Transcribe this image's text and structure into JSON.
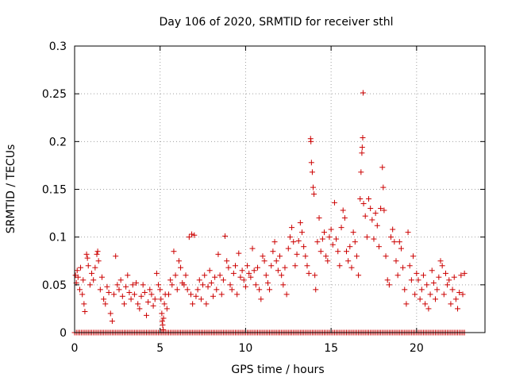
{
  "chart_data": {
    "type": "scatter",
    "title": "Day 106 of 2020, SRMTID for receiver sthl",
    "xlabel": "GPS time / hours",
    "ylabel": "SRMTID / TECUs",
    "xlim": [
      0,
      24
    ],
    "ylim": [
      0,
      0.3
    ],
    "xticks": [
      0,
      5,
      10,
      15,
      20
    ],
    "xtick_labels": [
      "0",
      "5",
      "10",
      "15",
      "20"
    ],
    "yticks": [
      0,
      0.05,
      0.1,
      0.15,
      0.2,
      0.25,
      0.3
    ],
    "ytick_labels": [
      "0",
      "0.05",
      "0.1",
      "0.15",
      "0.2",
      "0.25",
      "0.3"
    ],
    "grid": true,
    "marker": "+",
    "color": "#cc0000",
    "series": [
      {
        "name": "SRMTID",
        "points": [
          [
            0.05,
            0.06
          ],
          [
            0.1,
            0.052
          ],
          [
            0.15,
            0.065
          ],
          [
            0.2,
            0.058
          ],
          [
            0.3,
            0.045
          ],
          [
            0.35,
            0.068
          ],
          [
            0.45,
            0.04
          ],
          [
            0.5,
            0.055
          ],
          [
            0.55,
            0.03
          ],
          [
            0.6,
            0.022
          ],
          [
            0.7,
            0.082
          ],
          [
            0.75,
            0.078
          ],
          [
            0.8,
            0.07
          ],
          [
            0.9,
            0.05
          ],
          [
            1.0,
            0.062
          ],
          [
            1.1,
            0.055
          ],
          [
            1.2,
            0.068
          ],
          [
            1.3,
            0.082
          ],
          [
            1.35,
            0.085
          ],
          [
            1.4,
            0.075
          ],
          [
            1.5,
            0.045
          ],
          [
            1.6,
            0.058
          ],
          [
            1.7,
            0.035
          ],
          [
            1.8,
            0.03
          ],
          [
            1.9,
            0.048
          ],
          [
            2.0,
            0.042
          ],
          [
            2.1,
            0.02
          ],
          [
            2.2,
            0.012
          ],
          [
            2.3,
            0.04
          ],
          [
            2.4,
            0.08
          ],
          [
            2.5,
            0.05
          ],
          [
            2.6,
            0.045
          ],
          [
            2.7,
            0.055
          ],
          [
            2.8,
            0.038
          ],
          [
            2.9,
            0.03
          ],
          [
            3.0,
            0.048
          ],
          [
            3.1,
            0.06
          ],
          [
            3.2,
            0.042
          ],
          [
            3.3,
            0.035
          ],
          [
            3.4,
            0.05
          ],
          [
            3.5,
            0.04
          ],
          [
            3.6,
            0.052
          ],
          [
            3.7,
            0.03
          ],
          [
            3.8,
            0.025
          ],
          [
            3.9,
            0.038
          ],
          [
            4.0,
            0.05
          ],
          [
            4.1,
            0.042
          ],
          [
            4.2,
            0.018
          ],
          [
            4.3,
            0.032
          ],
          [
            4.4,
            0.045
          ],
          [
            4.5,
            0.04
          ],
          [
            4.6,
            0.028
          ],
          [
            4.7,
            0.035
          ],
          [
            4.8,
            0.062
          ],
          [
            4.9,
            0.05
          ],
          [
            5.0,
            0.045
          ],
          [
            5.05,
            0.035
          ],
          [
            5.1,
            0.02
          ],
          [
            5.12,
            0.012
          ],
          [
            5.15,
            0.008
          ],
          [
            5.18,
            0.003
          ],
          [
            5.2,
            0.015
          ],
          [
            5.25,
            0.03
          ],
          [
            5.3,
            0.04
          ],
          [
            5.4,
            0.025
          ],
          [
            5.5,
            0.04
          ],
          [
            5.6,
            0.055
          ],
          [
            5.7,
            0.05
          ],
          [
            5.8,
            0.085
          ],
          [
            5.9,
            0.06
          ],
          [
            6.0,
            0.045
          ],
          [
            6.1,
            0.075
          ],
          [
            6.2,
            0.068
          ],
          [
            6.3,
            0.052
          ],
          [
            6.4,
            0.05
          ],
          [
            6.5,
            0.06
          ],
          [
            6.6,
            0.045
          ],
          [
            6.7,
            0.1
          ],
          [
            6.8,
            0.04
          ],
          [
            6.85,
            0.103
          ],
          [
            6.9,
            0.03
          ],
          [
            7.0,
            0.102
          ],
          [
            7.1,
            0.038
          ],
          [
            7.2,
            0.045
          ],
          [
            7.3,
            0.055
          ],
          [
            7.4,
            0.035
          ],
          [
            7.5,
            0.05
          ],
          [
            7.6,
            0.06
          ],
          [
            7.7,
            0.03
          ],
          [
            7.8,
            0.048
          ],
          [
            7.9,
            0.065
          ],
          [
            8.0,
            0.052
          ],
          [
            8.1,
            0.038
          ],
          [
            8.2,
            0.058
          ],
          [
            8.3,
            0.045
          ],
          [
            8.4,
            0.082
          ],
          [
            8.5,
            0.06
          ],
          [
            8.6,
            0.04
          ],
          [
            8.7,
            0.055
          ],
          [
            8.8,
            0.101
          ],
          [
            8.9,
            0.075
          ],
          [
            9.0,
            0.068
          ],
          [
            9.1,
            0.05
          ],
          [
            9.2,
            0.045
          ],
          [
            9.3,
            0.062
          ],
          [
            9.4,
            0.07
          ],
          [
            9.5,
            0.04
          ],
          [
            9.6,
            0.083
          ],
          [
            9.7,
            0.058
          ],
          [
            9.8,
            0.065
          ],
          [
            9.9,
            0.055
          ],
          [
            10.0,
            0.048
          ],
          [
            10.1,
            0.07
          ],
          [
            10.2,
            0.062
          ],
          [
            10.3,
            0.058
          ],
          [
            10.4,
            0.088
          ],
          [
            10.5,
            0.065
          ],
          [
            10.6,
            0.05
          ],
          [
            10.7,
            0.068
          ],
          [
            10.8,
            0.045
          ],
          [
            10.9,
            0.035
          ],
          [
            11.0,
            0.08
          ],
          [
            11.1,
            0.075
          ],
          [
            11.2,
            0.06
          ],
          [
            11.3,
            0.052
          ],
          [
            11.4,
            0.045
          ],
          [
            11.5,
            0.07
          ],
          [
            11.6,
            0.085
          ],
          [
            11.7,
            0.095
          ],
          [
            11.8,
            0.075
          ],
          [
            11.9,
            0.065
          ],
          [
            12.0,
            0.08
          ],
          [
            12.1,
            0.06
          ],
          [
            12.2,
            0.05
          ],
          [
            12.3,
            0.068
          ],
          [
            12.4,
            0.04
          ],
          [
            12.5,
            0.088
          ],
          [
            12.6,
            0.1
          ],
          [
            12.7,
            0.11
          ],
          [
            12.8,
            0.095
          ],
          [
            12.9,
            0.07
          ],
          [
            13.0,
            0.082
          ],
          [
            13.1,
            0.096
          ],
          [
            13.2,
            0.115
          ],
          [
            13.3,
            0.105
          ],
          [
            13.4,
            0.09
          ],
          [
            13.5,
            0.08
          ],
          [
            13.6,
            0.07
          ],
          [
            13.7,
            0.062
          ],
          [
            13.8,
            0.203
          ],
          [
            13.82,
            0.2
          ],
          [
            13.85,
            0.178
          ],
          [
            13.9,
            0.168
          ],
          [
            13.95,
            0.152
          ],
          [
            14.0,
            0.145
          ],
          [
            14.05,
            0.06
          ],
          [
            14.1,
            0.045
          ],
          [
            14.2,
            0.095
          ],
          [
            14.3,
            0.12
          ],
          [
            14.4,
            0.085
          ],
          [
            14.5,
            0.098
          ],
          [
            14.6,
            0.105
          ],
          [
            14.7,
            0.08
          ],
          [
            14.8,
            0.075
          ],
          [
            14.9,
            0.1
          ],
          [
            15.0,
            0.108
          ],
          [
            15.1,
            0.092
          ],
          [
            15.2,
            0.136
          ],
          [
            15.3,
            0.098
          ],
          [
            15.4,
            0.085
          ],
          [
            15.5,
            0.07
          ],
          [
            15.6,
            0.11
          ],
          [
            15.7,
            0.128
          ],
          [
            15.8,
            0.12
          ],
          [
            15.9,
            0.085
          ],
          [
            16.0,
            0.075
          ],
          [
            16.1,
            0.09
          ],
          [
            16.2,
            0.068
          ],
          [
            16.3,
            0.105
          ],
          [
            16.4,
            0.095
          ],
          [
            16.5,
            0.08
          ],
          [
            16.6,
            0.06
          ],
          [
            16.7,
            0.14
          ],
          [
            16.75,
            0.168
          ],
          [
            16.8,
            0.188
          ],
          [
            16.82,
            0.194
          ],
          [
            16.85,
            0.204
          ],
          [
            16.87,
            0.251
          ],
          [
            16.9,
            0.135
          ],
          [
            17.0,
            0.122
          ],
          [
            17.1,
            0.1
          ],
          [
            17.2,
            0.14
          ],
          [
            17.3,
            0.13
          ],
          [
            17.4,
            0.118
          ],
          [
            17.5,
            0.098
          ],
          [
            17.6,
            0.125
          ],
          [
            17.7,
            0.112
          ],
          [
            17.8,
            0.09
          ],
          [
            17.9,
            0.13
          ],
          [
            18.0,
            0.173
          ],
          [
            18.05,
            0.152
          ],
          [
            18.1,
            0.128
          ],
          [
            18.2,
            0.08
          ],
          [
            18.3,
            0.055
          ],
          [
            18.4,
            0.05
          ],
          [
            18.5,
            0.1
          ],
          [
            18.6,
            0.108
          ],
          [
            18.7,
            0.095
          ],
          [
            18.8,
            0.075
          ],
          [
            18.9,
            0.06
          ],
          [
            19.0,
            0.095
          ],
          [
            19.1,
            0.088
          ],
          [
            19.2,
            0.068
          ],
          [
            19.3,
            0.045
          ],
          [
            19.4,
            0.03
          ],
          [
            19.5,
            0.105
          ],
          [
            19.6,
            0.07
          ],
          [
            19.7,
            0.055
          ],
          [
            19.8,
            0.08
          ],
          [
            19.9,
            0.04
          ],
          [
            20.0,
            0.062
          ],
          [
            20.1,
            0.055
          ],
          [
            20.2,
            0.035
          ],
          [
            20.3,
            0.045
          ],
          [
            20.4,
            0.06
          ],
          [
            20.5,
            0.03
          ],
          [
            20.6,
            0.05
          ],
          [
            20.7,
            0.025
          ],
          [
            20.8,
            0.04
          ],
          [
            20.9,
            0.065
          ],
          [
            21.0,
            0.052
          ],
          [
            21.1,
            0.035
          ],
          [
            21.2,
            0.045
          ],
          [
            21.3,
            0.058
          ],
          [
            21.4,
            0.075
          ],
          [
            21.5,
            0.07
          ],
          [
            21.6,
            0.04
          ],
          [
            21.7,
            0.062
          ],
          [
            21.8,
            0.05
          ],
          [
            21.9,
            0.055
          ],
          [
            22.0,
            0.03
          ],
          [
            22.1,
            0.045
          ],
          [
            22.2,
            0.058
          ],
          [
            22.3,
            0.035
          ],
          [
            22.4,
            0.025
          ],
          [
            22.5,
            0.042
          ],
          [
            22.6,
            0.06
          ],
          [
            22.7,
            0.04
          ],
          [
            22.8,
            0.062
          ]
        ],
        "baseline": {
          "y": 0,
          "x_start": 0,
          "x_end": 22.8,
          "x_step": 0.1
        }
      }
    ]
  }
}
